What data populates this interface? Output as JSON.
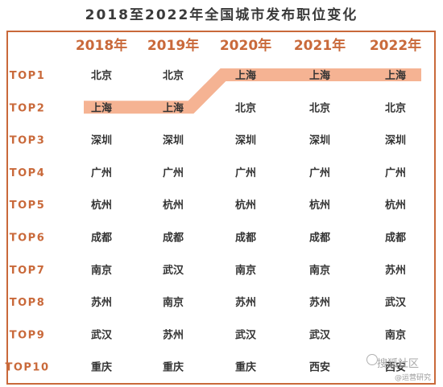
{
  "title": "2018至2022年全国城市发布职位变化",
  "chart_data": {
    "type": "table",
    "years": [
      "2018年",
      "2019年",
      "2020年",
      "2021年",
      "2022年"
    ],
    "ranks": [
      "TOP1",
      "TOP2",
      "TOP3",
      "TOP4",
      "TOP5",
      "TOP6",
      "TOP7",
      "TOP8",
      "TOP9",
      "TOP10"
    ],
    "columns": [
      [
        "北京",
        "上海",
        "深圳",
        "广州",
        "杭州",
        "成都",
        "南京",
        "苏州",
        "武汉",
        "重庆"
      ],
      [
        "北京",
        "上海",
        "深圳",
        "广州",
        "杭州",
        "成都",
        "武汉",
        "南京",
        "苏州",
        "重庆"
      ],
      [
        "上海",
        "北京",
        "深圳",
        "广州",
        "杭州",
        "成都",
        "南京",
        "苏州",
        "武汉",
        "重庆"
      ],
      [
        "上海",
        "北京",
        "深圳",
        "广州",
        "杭州",
        "成都",
        "南京",
        "苏州",
        "武汉",
        "西安"
      ],
      [
        "上海",
        "北京",
        "深圳",
        "广州",
        "杭州",
        "成都",
        "苏州",
        "武汉",
        "南京",
        "西安"
      ]
    ],
    "highlight_city": "上海"
  },
  "colors": {
    "accent": "#c9693a",
    "highlight": "#f5b393",
    "cell_text": "#333333"
  },
  "watermark": {
    "line1": "搜狐社区",
    "line2": "@运营研究"
  }
}
